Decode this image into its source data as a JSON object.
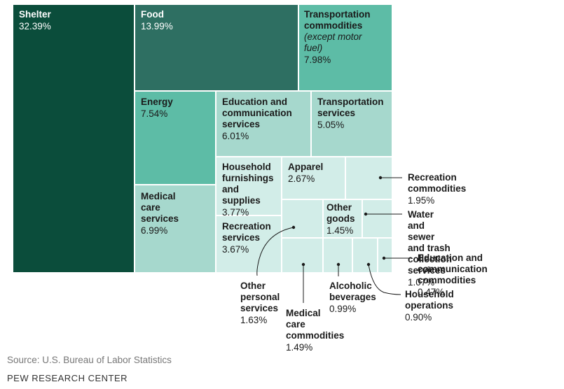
{
  "colors": {
    "shelter": "#0b4d3b",
    "food": "#2e6f62",
    "mid": "#5dbca6",
    "light": "#a6d8cd",
    "pale": "#d2ede8",
    "line": "#1a1a1a"
  },
  "chart_data": {
    "type": "treemap",
    "unit": "%",
    "items": [
      {
        "id": "shelter",
        "lines": [
          "Shelter"
        ],
        "value_label": "32.39%",
        "value": 32.39,
        "tone": "shelter",
        "light_text": true
      },
      {
        "id": "food",
        "lines": [
          "Food"
        ],
        "value_label": "13.99%",
        "value": 13.99,
        "tone": "food",
        "light_text": true
      },
      {
        "id": "transport-commodities",
        "lines": [
          "Transportation",
          "commodities"
        ],
        "note": "(except motor fuel)",
        "value_label": "7.98%",
        "value": 7.98,
        "tone": "mid"
      },
      {
        "id": "energy",
        "lines": [
          "Energy"
        ],
        "value_label": "7.54%",
        "value": 7.54,
        "tone": "mid"
      },
      {
        "id": "medical-care-services",
        "lines": [
          "Medical",
          "care services"
        ],
        "value_label": "6.99%",
        "value": 6.99,
        "tone": "light"
      },
      {
        "id": "education-communication-services",
        "lines": [
          "Education and",
          "communication",
          "services"
        ],
        "value_label": "6.01%",
        "value": 6.01,
        "tone": "light"
      },
      {
        "id": "transportation-services",
        "lines": [
          "Transportation",
          "services"
        ],
        "value_label": "5.05%",
        "value": 5.05,
        "tone": "light"
      },
      {
        "id": "household-furnishings",
        "lines": [
          "Household",
          "furnishings",
          "and supplies"
        ],
        "value_label": "3.77%",
        "value": 3.77,
        "tone": "pale"
      },
      {
        "id": "recreation-services",
        "lines": [
          "Recreation",
          "services"
        ],
        "value_label": "3.67%",
        "value": 3.67,
        "tone": "pale"
      },
      {
        "id": "apparel",
        "lines": [
          "Apparel"
        ],
        "value_label": "2.67%",
        "value": 2.67,
        "tone": "pale"
      },
      {
        "id": "recreation-commodities",
        "lines": [
          "Recreation commodities"
        ],
        "value_label": "1.95%",
        "value": 1.95,
        "tone": "pale",
        "external": true
      },
      {
        "id": "other-personal-services",
        "lines": [
          "Other",
          "personal",
          "services"
        ],
        "value_label": "1.63%",
        "value": 1.63,
        "tone": "pale",
        "external": true
      },
      {
        "id": "medical-care-commodities",
        "lines": [
          "Medical",
          "care commodities"
        ],
        "value_label": "1.49%",
        "value": 1.49,
        "tone": "pale",
        "external": true
      },
      {
        "id": "other-goods",
        "lines": [
          "Other",
          "goods"
        ],
        "value_label": "1.45%",
        "value": 1.45,
        "tone": "pale"
      },
      {
        "id": "water-sewer-trash",
        "lines": [
          "Water and sewer and trash",
          "collection services"
        ],
        "value_label": "1.07%",
        "value": 1.07,
        "tone": "pale",
        "external": true
      },
      {
        "id": "alcoholic-beverages",
        "lines": [
          "Alcoholic",
          "beverages"
        ],
        "value_label": "0.99%",
        "value": 0.99,
        "tone": "pale",
        "external": true
      },
      {
        "id": "household-operations",
        "lines": [
          "Household operations"
        ],
        "value_label": "0.90%",
        "value": 0.9,
        "tone": "pale",
        "external": true
      },
      {
        "id": "education-communication-commodities",
        "lines": [
          "Education and communication",
          "commodities"
        ],
        "value_label": "0.47%",
        "value": 0.47,
        "tone": "pale",
        "external": true
      }
    ]
  },
  "footer": {
    "source": "Source: U.S. Bureau of Labor Statistics",
    "brand": "PEW RESEARCH CENTER"
  }
}
